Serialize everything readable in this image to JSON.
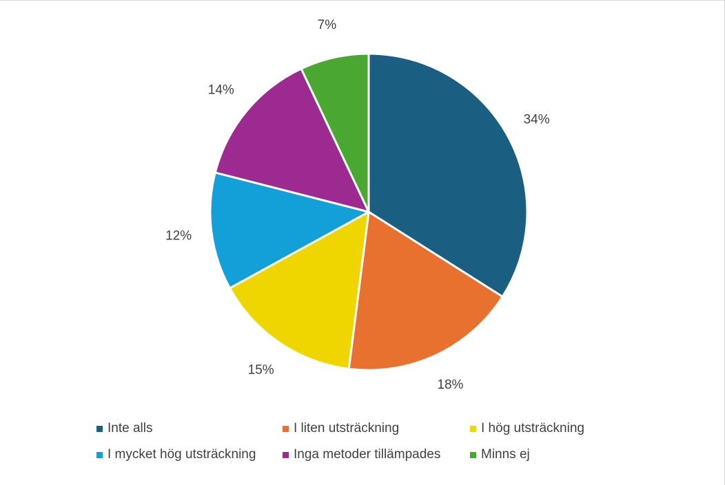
{
  "chart_data": {
    "type": "pie",
    "slices": [
      {
        "label": "Inte alls",
        "value": 34,
        "display": "34%",
        "color": "#1a5f82"
      },
      {
        "label": "I liten utsträckning",
        "value": 18,
        "display": "18%",
        "color": "#e8712f"
      },
      {
        "label": "I hög utsträckning",
        "value": 15,
        "display": "15%",
        "color": "#efd600"
      },
      {
        "label": "I mycket hög utsträckning",
        "value": 12,
        "display": "12%",
        "color": "#139fd8"
      },
      {
        "label": "Inga metoder tillämpades",
        "value": 14,
        "display": "14%",
        "color": "#9c2a91"
      },
      {
        "label": "Minns ej",
        "value": 7,
        "display": "7%",
        "color": "#4aa732"
      }
    ],
    "legend_position": "bottom",
    "start": "top",
    "direction": "clockwise"
  }
}
